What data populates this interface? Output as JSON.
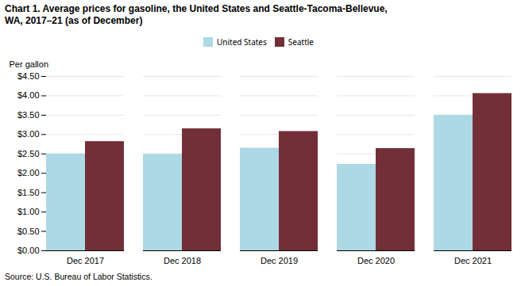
{
  "chart_data": {
    "type": "bar",
    "title": "Chart 1. Average prices for gasoline, the United States and Seattle-Tacoma-Bellevue,\nWA, 2017–21 (as of December)",
    "y_label": "Per gallon",
    "caption": "Source: U.S. Bureau of Labor Statistics.",
    "categories": [
      "Dec 2017",
      "Dec 2018",
      "Dec 2019",
      "Dec 2020",
      "Dec 2021"
    ],
    "series": [
      {
        "name": "United States",
        "color": "#ADD8E6",
        "values": [
          2.499,
          2.489,
          2.649,
          2.229,
          3.499
        ]
      },
      {
        "name": "Seattle",
        "color": "#722F37",
        "values": [
          2.819,
          3.149,
          3.079,
          2.639,
          4.059
        ]
      }
    ],
    "ylim": [
      0,
      4.5
    ],
    "yticks": [
      {
        "value": 0.0,
        "label": "$0.00"
      },
      {
        "value": 0.5,
        "label": "$0.50"
      },
      {
        "value": 1.0,
        "label": "$1.00"
      },
      {
        "value": 1.5,
        "label": "$1.50"
      },
      {
        "value": 2.0,
        "label": "$2.00"
      },
      {
        "value": 2.5,
        "label": "$2.50"
      },
      {
        "value": 3.0,
        "label": "$3.00"
      },
      {
        "value": 3.5,
        "label": "$3.50"
      },
      {
        "value": 4.0,
        "label": "$4.00"
      },
      {
        "value": 4.5,
        "label": "$4.50"
      }
    ],
    "grid": true,
    "legend": "top"
  }
}
